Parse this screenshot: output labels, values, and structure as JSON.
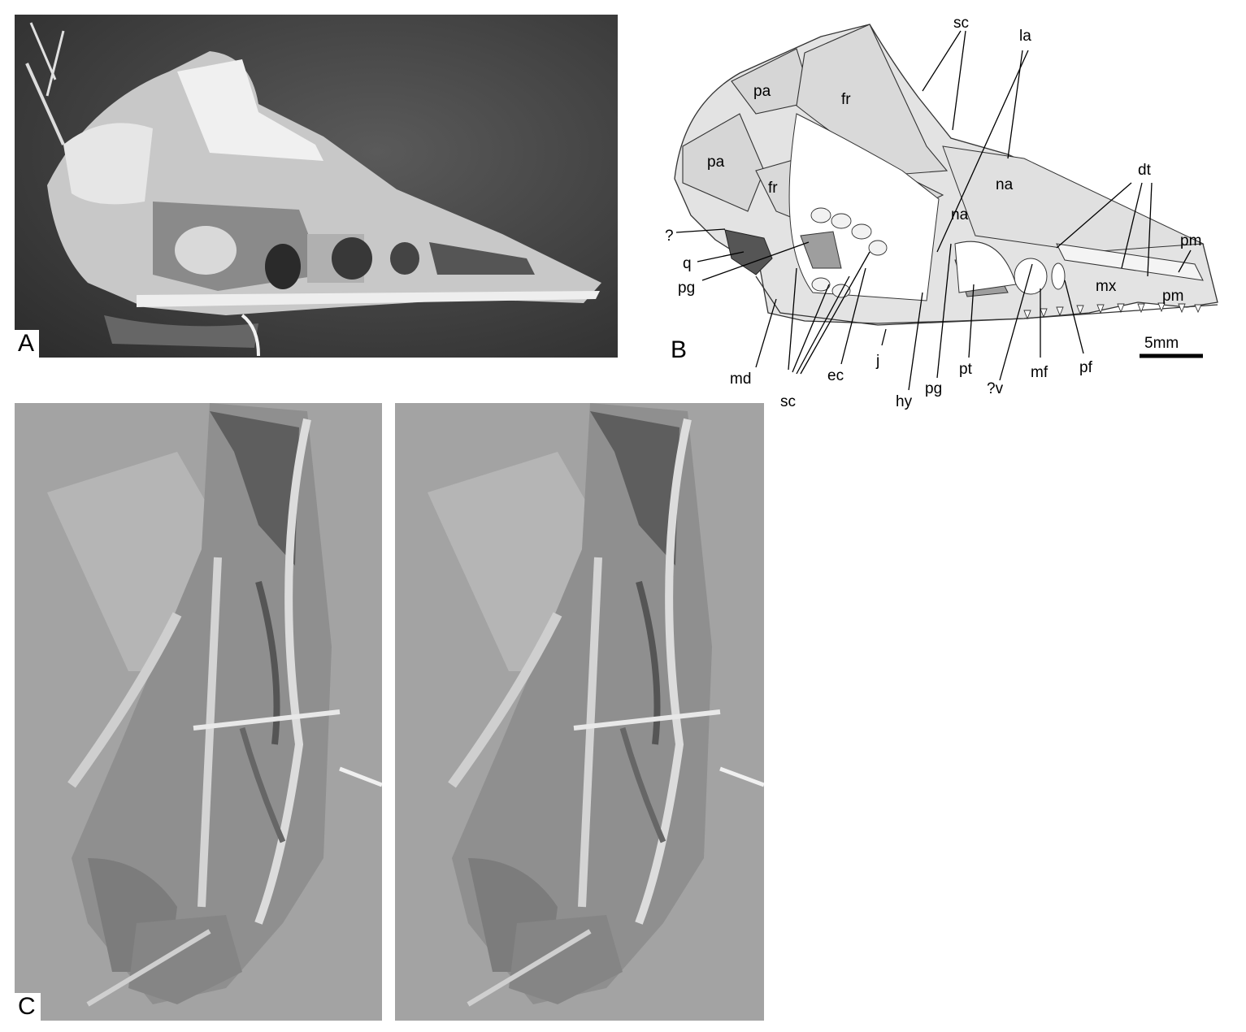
{
  "panels": {
    "a_letter": "A",
    "b_letter": "B",
    "c_letter": "C"
  },
  "diagram": {
    "labels": {
      "sc_top": "sc",
      "la": "la",
      "pa_upper": "pa",
      "fr_upper": "fr",
      "pa_lower": "pa",
      "fr_lower": "fr",
      "na_upper": "na",
      "na_lower": "na",
      "dt": "dt",
      "pm_upper": "pm",
      "pm_lower": "pm",
      "mx": "mx",
      "question": "?",
      "q": "q",
      "pg_left": "pg",
      "md": "md",
      "sc_bottom": "sc",
      "ec": "ec",
      "j": "j",
      "hy": "hy",
      "pg_right": "pg",
      "pt": "pt",
      "qv": "?v",
      "mf": "mf",
      "pf": "pf"
    },
    "scale_label": "5mm"
  }
}
